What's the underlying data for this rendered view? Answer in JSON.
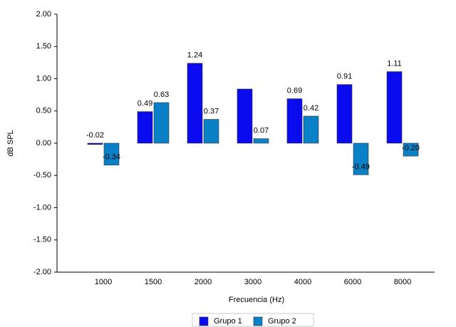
{
  "chart_data": {
    "type": "bar",
    "x_label": "Frecuencia (Hz)",
    "y_label": "dB SPL",
    "categories": [
      "1000",
      "1500",
      "2000",
      "3000",
      "4000",
      "6000",
      "8000"
    ],
    "series": [
      {
        "name": "Grupo 1",
        "color": "#0b0bf0",
        "values": [
          -0.02,
          0.49,
          1.24,
          0.84,
          0.69,
          0.91,
          1.11
        ],
        "value_labels": [
          "-0.02",
          "0.49",
          "1.24",
          null,
          "0.69",
          "0.91",
          "1.11"
        ]
      },
      {
        "name": "Grupo 2",
        "color": "#0a80c6",
        "values": [
          -0.34,
          0.63,
          0.37,
          0.07,
          0.42,
          -0.49,
          -0.2
        ],
        "value_labels": [
          "-0.34",
          "0.63",
          "0.37",
          "0.07",
          "0.42",
          "-0.49",
          "-0.20"
        ]
      }
    ],
    "ylim": [
      -2,
      2
    ],
    "yticks": [
      {
        "value": -2,
        "label": "-2.00"
      },
      {
        "value": -1.5,
        "label": "-1.50"
      },
      {
        "value": -1,
        "label": "-1.00"
      },
      {
        "value": -0.5,
        "label": "-0.50"
      },
      {
        "value": 0,
        "label": "0.00"
      },
      {
        "value": 0.5,
        "label": "0.50"
      },
      {
        "value": 1,
        "label": "1.00"
      },
      {
        "value": 1.5,
        "label": "1.50"
      },
      {
        "value": 2,
        "label": "2.00"
      }
    ],
    "legend": "bottom"
  }
}
